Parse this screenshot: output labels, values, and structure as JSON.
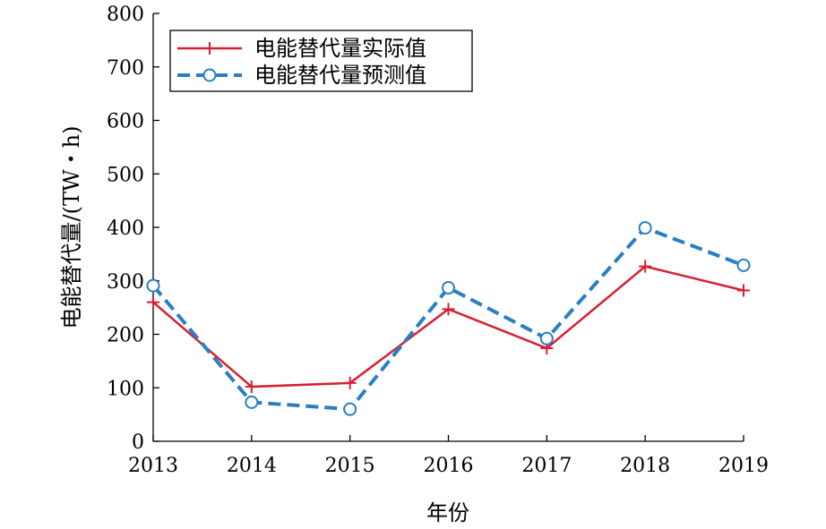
{
  "chart_data": {
    "type": "line",
    "title": "",
    "xlabel": "年份",
    "ylabel": "电能替代量/(TW・h)",
    "categories": [
      "2013",
      "2014",
      "2015",
      "2016",
      "2017",
      "2018",
      "2019"
    ],
    "ylim": [
      0,
      800
    ],
    "yticks": [
      0,
      100,
      200,
      300,
      400,
      500,
      600,
      700,
      800
    ],
    "grid": false,
    "legend_position": "top-left",
    "series": [
      {
        "name": "电能替代量实际值",
        "values": [
          260,
          102,
          109,
          247,
          174,
          327,
          282
        ],
        "color": "#d62030",
        "line_style": "solid",
        "marker": "plus"
      },
      {
        "name": "电能替代量预测值",
        "values": [
          291,
          73,
          60,
          287,
          192,
          399,
          329
        ],
        "color": "#2a7fc2",
        "line_style": "dashed",
        "marker": "circle"
      }
    ]
  }
}
